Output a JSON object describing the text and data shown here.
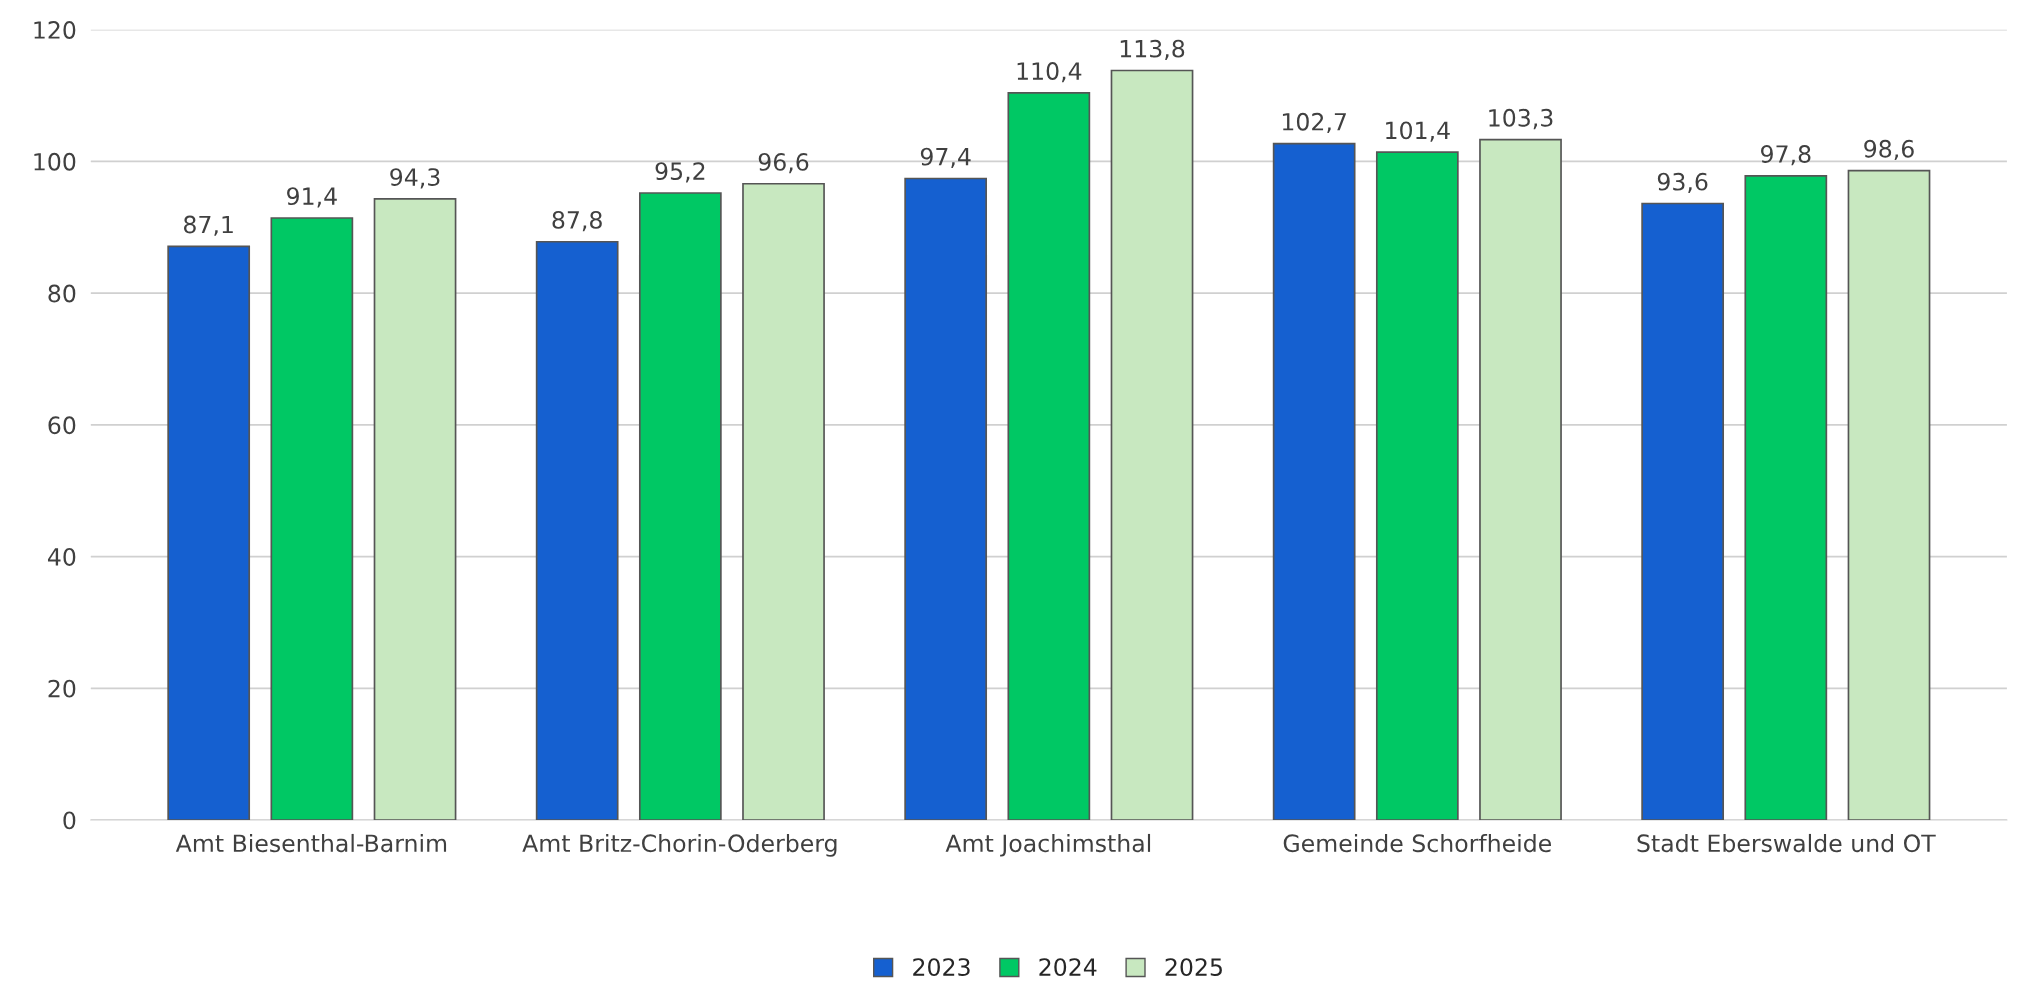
{
  "chart_data": {
    "type": "bar",
    "categories": [
      "Amt Biesenthal-Barnim",
      "Amt Britz-Chorin-Oderberg",
      "Amt Joachimsthal",
      "Gemeinde Schorfheide",
      "Stadt Eberswalde und OT"
    ],
    "series": [
      {
        "name": "2023",
        "color": "#1560d0",
        "values": [
          87.1,
          87.8,
          97.4,
          102.7,
          93.6
        ],
        "value_labels": [
          "87,1",
          "87,8",
          "97,4",
          "102,7",
          "93,6"
        ]
      },
      {
        "name": "2024",
        "color": "#00c864",
        "values": [
          91.4,
          95.2,
          110.4,
          101.4,
          97.8
        ],
        "value_labels": [
          "91,4",
          "95,2",
          "110,4",
          "101,4",
          "97,8"
        ]
      },
      {
        "name": "2025",
        "color": "#c8e8c0",
        "values": [
          94.3,
          96.6,
          113.8,
          103.3,
          98.6
        ],
        "value_labels": [
          "94,3",
          "96,6",
          "113,8",
          "103,3",
          "98,6"
        ]
      }
    ],
    "ylim": [
      0,
      120
    ],
    "yticks": [
      0,
      20,
      40,
      60,
      80,
      100,
      120
    ],
    "grid": "y",
    "legend": "bottom"
  }
}
